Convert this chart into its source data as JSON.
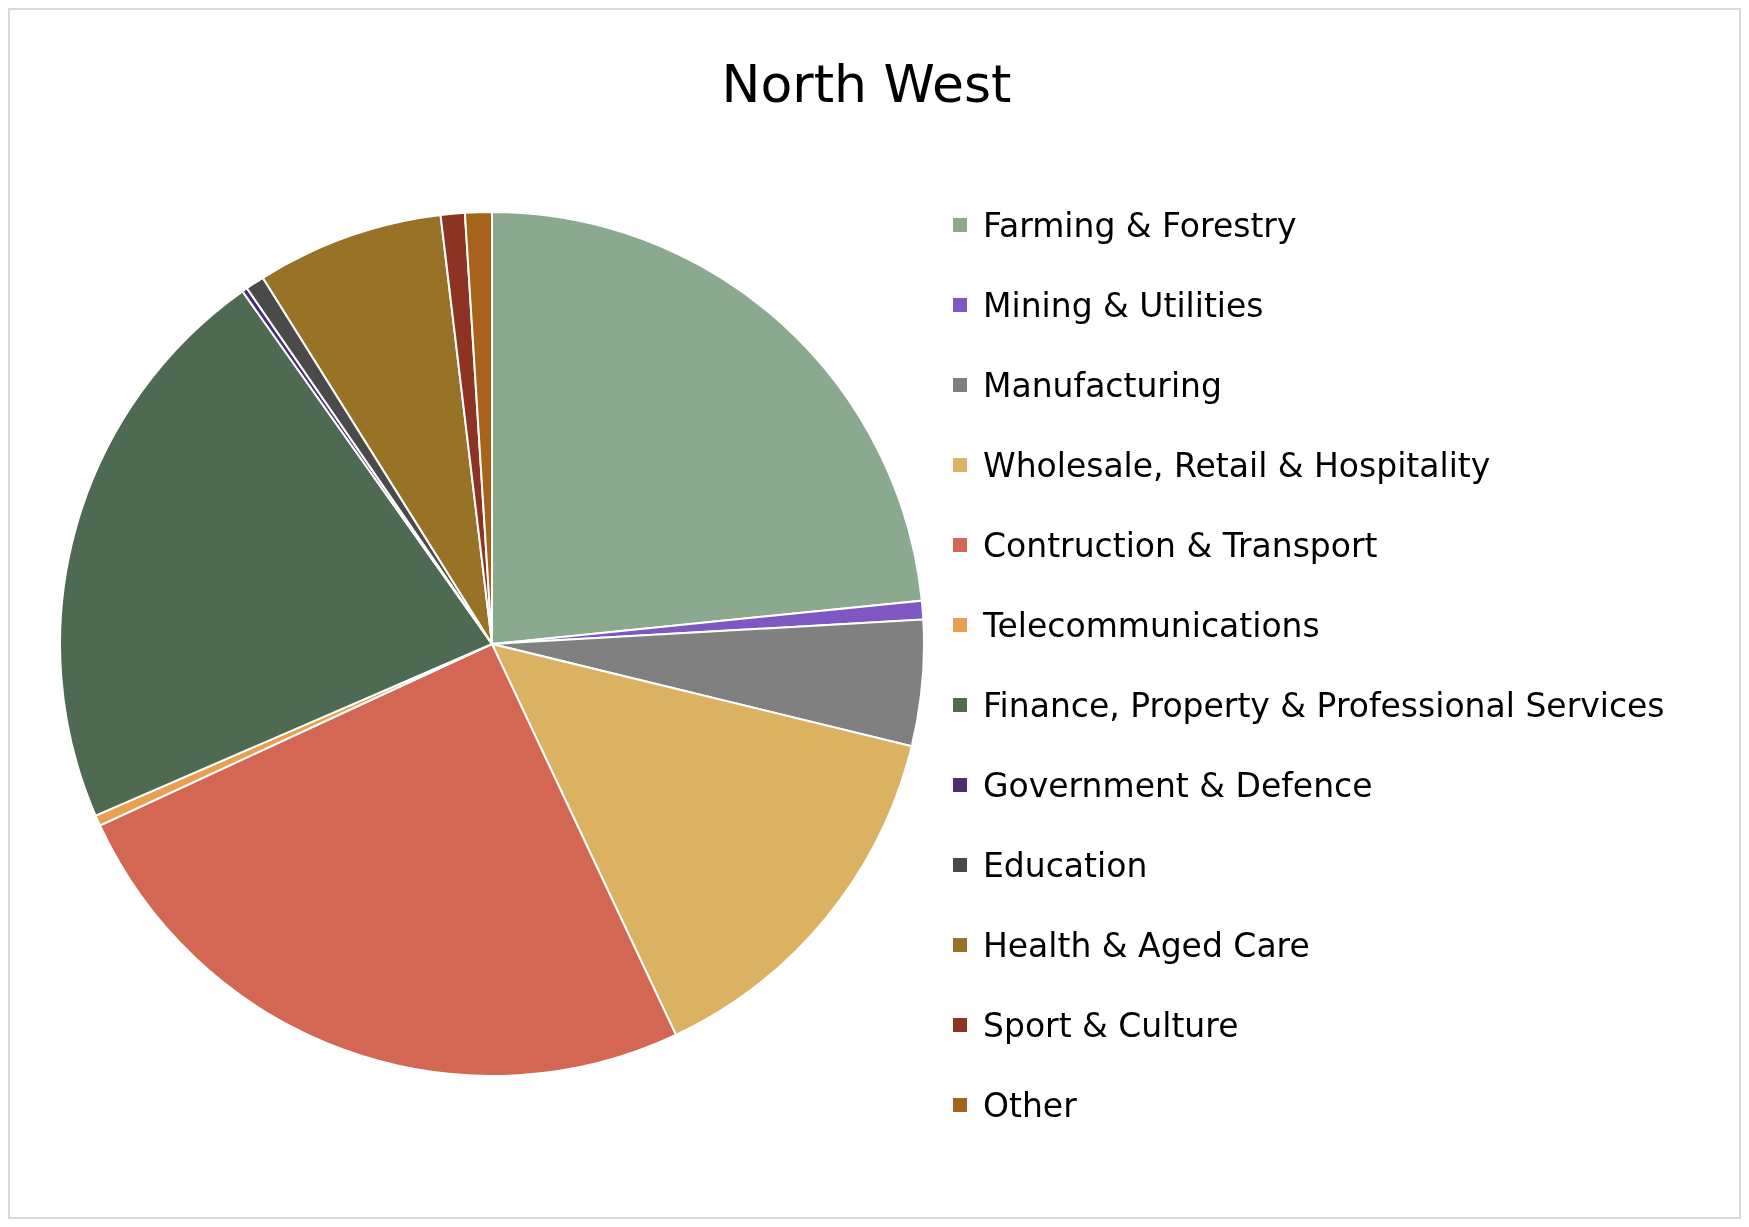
{
  "chart_data": {
    "type": "pie",
    "title": "North West",
    "categories": [
      "Farming & Forestry",
      "Mining & Utilities",
      "Manufacturing",
      "Wholesale, Retail & Hospitality",
      "Contruction & Transport",
      "Telecommunications",
      "Finance, Property & Professional Services",
      "Government & Defence",
      "Education",
      "Health & Aged Care",
      "Sport & Culture",
      "Other"
    ],
    "values": [
      23.4,
      0.7,
      4.7,
      14.2,
      25.1,
      0.4,
      21.7,
      0.2,
      0.7,
      7.0,
      0.9,
      1.0
    ],
    "colors": [
      "#8ba98f",
      "#7e57c2",
      "#808080",
      "#dbb262",
      "#d36753",
      "#e8a050",
      "#4e6a53",
      "#4b2d73",
      "#4a4a4a",
      "#987226",
      "#8c3323",
      "#a66319"
    ],
    "legend": "right"
  }
}
